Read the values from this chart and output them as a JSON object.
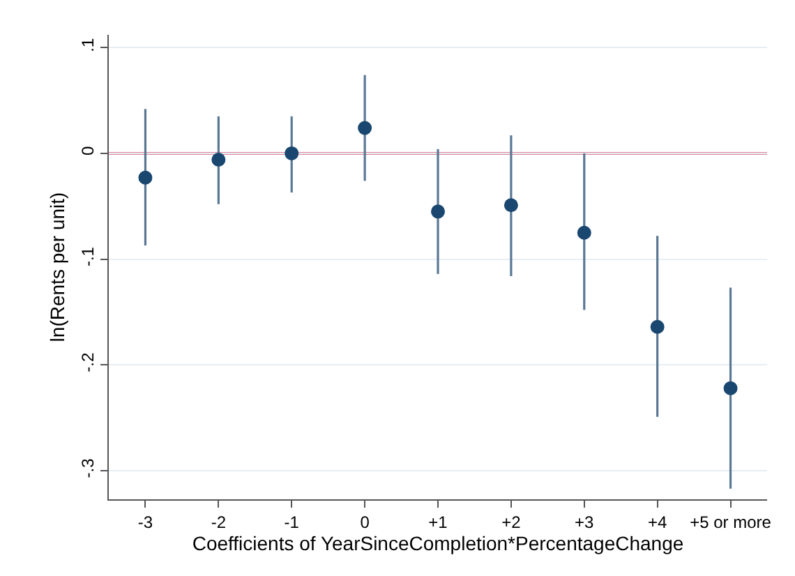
{
  "chart_data": {
    "type": "scatter",
    "xlabel": "Coefficients of YearSinceCompletion*PercentageChange",
    "ylabel": "ln(Rents per unit)",
    "categories": [
      "-3",
      "-2",
      "-1",
      "0",
      "+1",
      "+2",
      "+3",
      "+4",
      "+5 or more"
    ],
    "series": [
      {
        "color": "#1a476f",
        "values": [
          -0.023,
          -0.006,
          0.0,
          0.024,
          -0.055,
          -0.049,
          -0.075,
          -0.164,
          -0.222
        ],
        "errors": [
          [
            -0.087,
            0.042
          ],
          [
            -0.048,
            0.035
          ],
          [
            -0.037,
            0.035
          ],
          [
            -0.026,
            0.074
          ],
          [
            -0.114,
            0.004
          ],
          [
            -0.116,
            0.017
          ],
          [
            -0.148,
            0.0
          ],
          [
            -0.249,
            -0.078
          ],
          [
            -0.317,
            -0.127
          ]
        ]
      }
    ],
    "ylim": [
      -0.327,
      0.112
    ],
    "yticks": [
      {
        "value": -0.3,
        "label": "-.3"
      },
      {
        "value": -0.2,
        "label": "-.2"
      },
      {
        "value": -0.1,
        "label": "-.1"
      },
      0,
      {
        "value": 0.1,
        "label": ".1"
      }
    ],
    "ref_lines": [
      {
        "axis": "y",
        "value": 0,
        "color": "#c10534",
        "line_style": "solid"
      }
    ],
    "grid": "y",
    "marker": "circle"
  }
}
